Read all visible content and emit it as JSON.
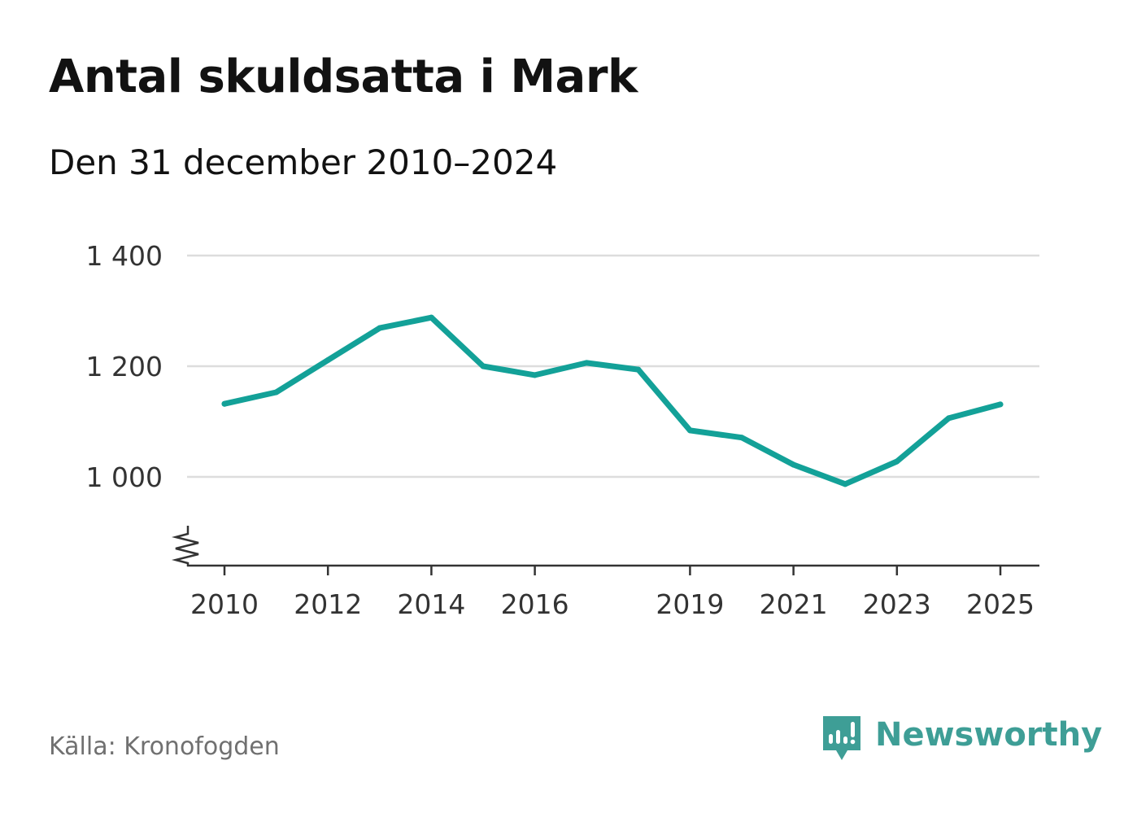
{
  "chart_data": {
    "type": "line",
    "title": "Antal skuldsatta i Mark",
    "subtitle": "Den 31 december 2010–2024",
    "source": "Källa: Kronofogden",
    "xlabel": "",
    "ylabel": "",
    "x": [
      2010,
      2011,
      2012,
      2013,
      2014,
      2015,
      2016,
      2017,
      2018,
      2019,
      2020,
      2021,
      2022,
      2023,
      2024,
      2025
    ],
    "series": [
      {
        "name": "Antal skuldsatta",
        "values": [
          1132,
          1153,
          1211,
          1269,
          1288,
          1200,
          1184,
          1206,
          1194,
          1084,
          1071,
          1022,
          987,
          1028,
          1106,
          1131
        ]
      }
    ],
    "ylim": [
      840,
      1400
    ],
    "xlim": [
      2010,
      2025
    ],
    "y_ticks": [
      1000,
      1200,
      1400
    ],
    "y_tick_labels": [
      "1 000",
      "1 200",
      "1 400"
    ],
    "x_ticks": [
      2010,
      2012,
      2014,
      2016,
      2019,
      2021,
      2023,
      2025
    ],
    "x_tick_labels": [
      "2010",
      "2012",
      "2014",
      "2016",
      "2019",
      "2021",
      "2023",
      "2025"
    ],
    "axis_break": true,
    "grid": true,
    "line_color": "#13a198",
    "grid_color": "#dddddd",
    "axis_color": "#333333"
  },
  "brand": {
    "name": "Newsworthy",
    "color": "#3e9e96"
  }
}
